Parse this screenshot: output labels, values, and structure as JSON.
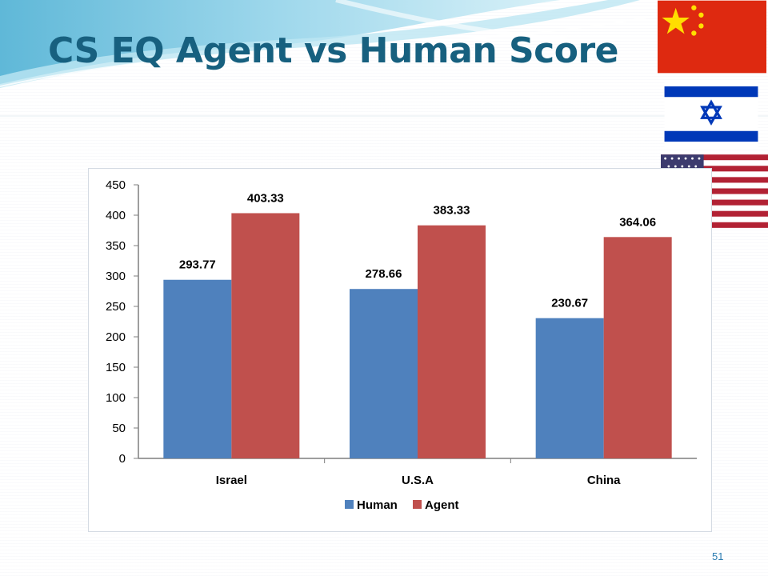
{
  "slide": {
    "title": "CS EQ Agent vs Human Score",
    "page_number": "51"
  },
  "flags": [
    {
      "country": "China",
      "icon": "china-flag-icon"
    },
    {
      "country": "Israel",
      "icon": "israel-flag-icon"
    },
    {
      "country": "U.S.A",
      "icon": "usa-flag-icon"
    }
  ],
  "colors": {
    "title": "#17607f",
    "human": "#4f81bd",
    "agent": "#c0504d",
    "page_number": "#2a7bb0"
  },
  "chart_data": {
    "type": "bar",
    "title": "",
    "xlabel": "",
    "ylabel": "",
    "categories": [
      "Israel",
      "U.S.A",
      "China"
    ],
    "series": [
      {
        "name": "Human",
        "values": [
          293.77,
          278.66,
          230.67
        ],
        "labels": [
          "293.77",
          "278.66",
          "230.67"
        ]
      },
      {
        "name": "Agent",
        "values": [
          403.33,
          383.33,
          364.06
        ],
        "labels": [
          "403.33",
          "383.33",
          "364.06"
        ]
      }
    ],
    "ylim": [
      0,
      450
    ],
    "yticks": [
      0,
      50,
      100,
      150,
      200,
      250,
      300,
      350,
      400,
      450
    ],
    "grid": false,
    "legend": "bottom"
  }
}
